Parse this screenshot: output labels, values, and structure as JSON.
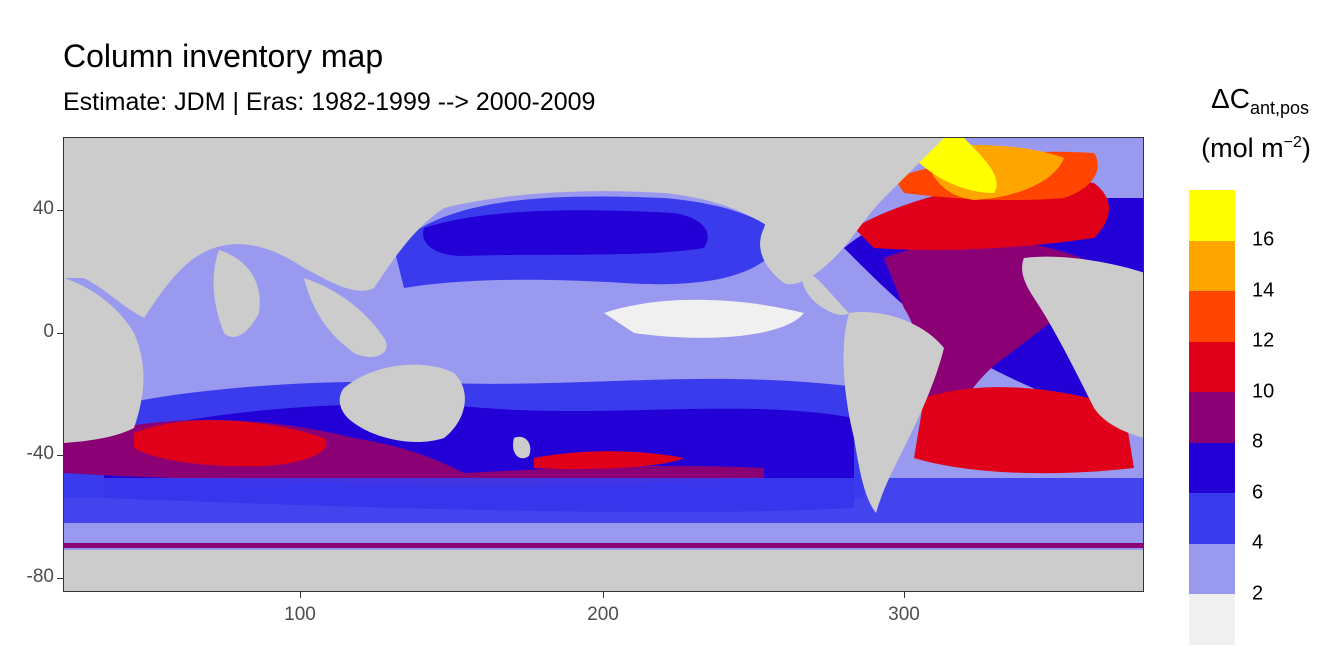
{
  "title": "Column inventory map",
  "subtitle": "Estimate: JDM  | Eras: 1982-1999 --> 2000-2009",
  "legend": {
    "symbol": "ΔC",
    "subscript": "ant,pos",
    "unit_prefix": "(mol m",
    "unit_sup": "−2",
    "unit_suffix": ")",
    "breaks": [
      "16",
      "14",
      "12",
      "10",
      "8",
      "6",
      "4",
      "2"
    ],
    "colors": [
      "#ffff00",
      "#ffa500",
      "#ff4500",
      "#e0001a",
      "#8b0075",
      "#2200d6",
      "#3b3bee",
      "#9999ef",
      "#f0f0f0"
    ]
  },
  "axes": {
    "x_ticks": [
      "100",
      "200",
      "300"
    ],
    "y_ticks": [
      "40",
      "0",
      "-40",
      "-80"
    ],
    "x_range": [
      20,
      380
    ],
    "y_range": [
      -85,
      64
    ]
  },
  "map_colors": {
    "land": "#cccccc",
    "v0_2": "#f0f0f0",
    "v2_4": "#9999ef",
    "v4_6": "#3b3bee",
    "v6_8": "#2200d6",
    "v8_10": "#8b0075",
    "v10_12": "#e0001a",
    "v12_14": "#ff4500",
    "v14_16": "#ffa500",
    "v16_plus": "#ffff00"
  }
}
